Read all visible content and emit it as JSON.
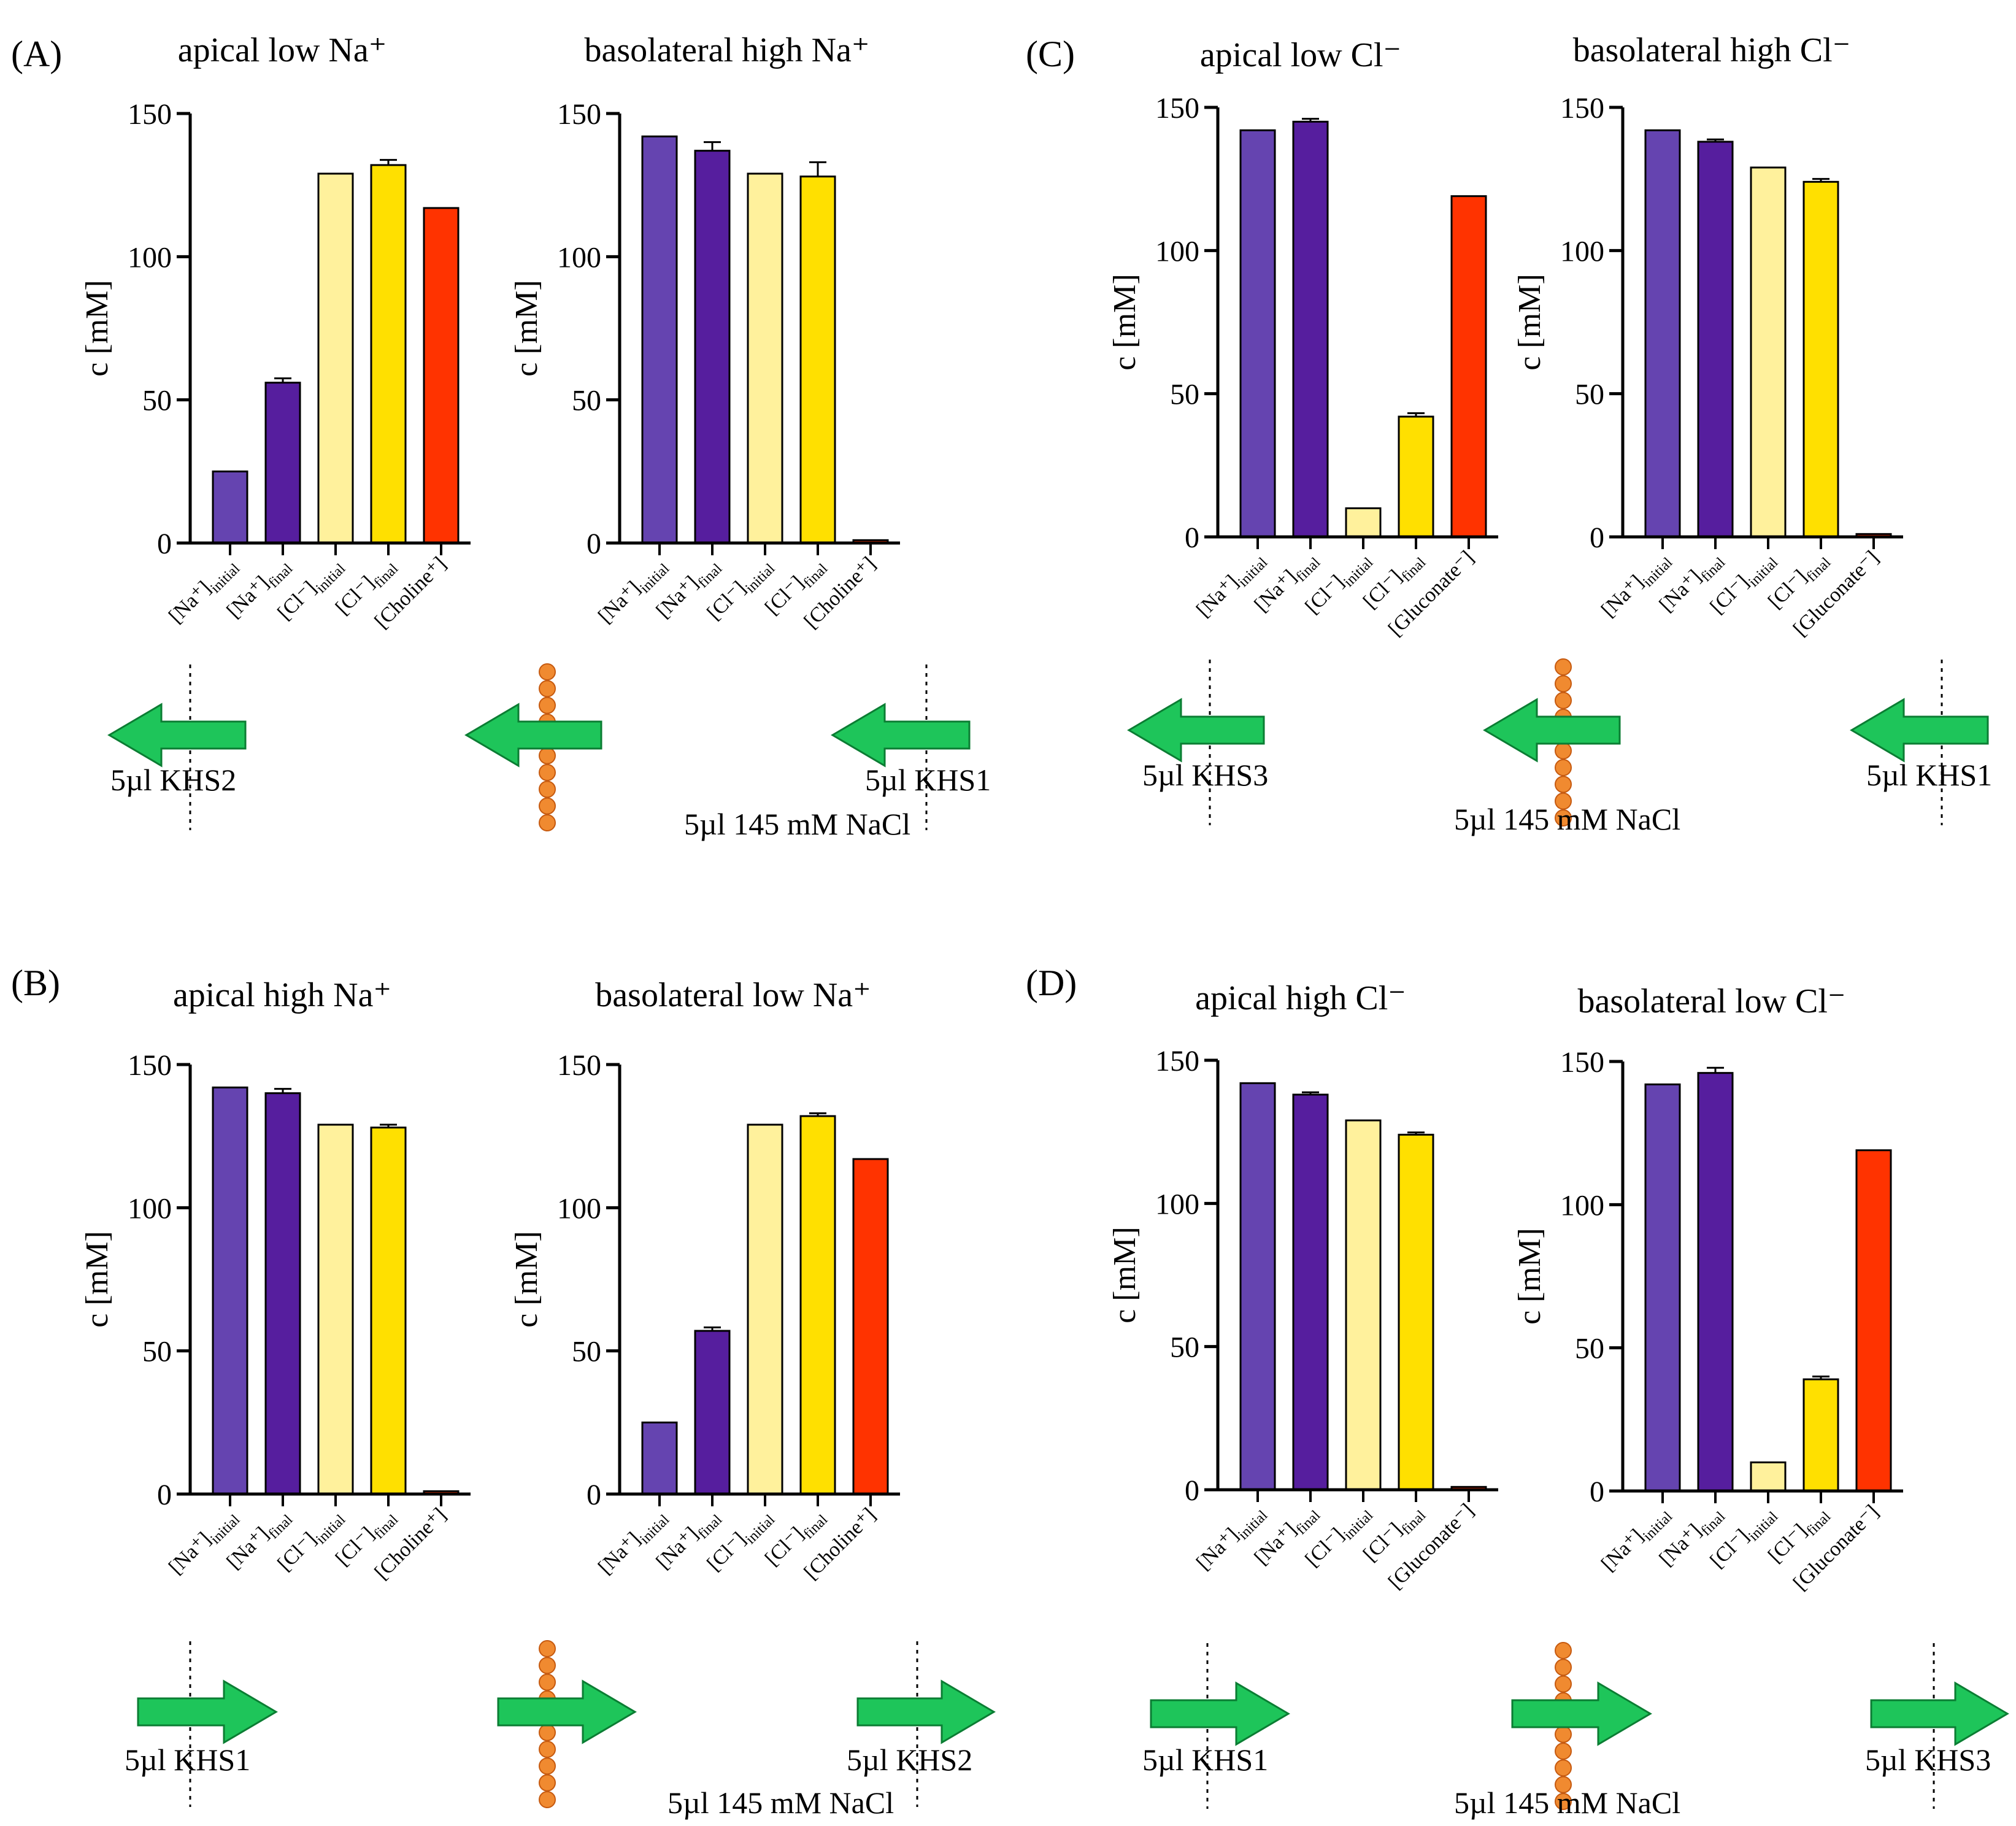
{
  "panels": [
    {
      "label": "(A)",
      "diagram": {
        "left_label": "5µl KHS2",
        "center_label": "5µl 145 mM NaCl",
        "right_label": "5µl KHS1",
        "direction": "left"
      }
    },
    {
      "label": "(C)",
      "diagram": {
        "left_label": "5µl KHS3",
        "center_label": "5µl 145 mM NaCl",
        "right_label": "5µl KHS1",
        "direction": "left"
      }
    },
    {
      "label": "(B)",
      "diagram": {
        "left_label": "5µl KHS1",
        "center_label": "5µl 145 mM NaCl",
        "right_label": "5µl KHS2",
        "direction": "right"
      }
    },
    {
      "label": "(D)",
      "diagram": {
        "left_label": "5µl KHS1",
        "center_label": "5µl 145 mM NaCl",
        "right_label": "5µl KHS3",
        "direction": "right"
      }
    }
  ],
  "colors": {
    "na_initial": "#6544b0",
    "na_final": "#561e9e",
    "cl_initial": "#fff19c",
    "cl_final": "#ffe000",
    "counter_ion": "#ff3300",
    "arrow": "#1ec55a",
    "channel": "#f08a30"
  },
  "chart_data": [
    {
      "type": "bar",
      "panel": "A",
      "title": "apical low Na⁺",
      "ylabel": "c [mM]",
      "ylim": [
        0,
        150
      ],
      "yticks": [
        0,
        50,
        100,
        150
      ],
      "categories": [
        {
          "base": "[Na⁺]",
          "sub": "initial"
        },
        {
          "base": "[Na⁺]",
          "sub": "final"
        },
        {
          "base": "[Cl⁻]",
          "sub": "initial"
        },
        {
          "base": "[Cl⁻]",
          "sub": "final"
        },
        {
          "base": "[Choline⁺]",
          "sub": ""
        }
      ],
      "values": [
        25,
        56,
        129,
        132,
        117
      ],
      "errors": [
        0,
        1.5,
        0,
        1.8,
        0
      ]
    },
    {
      "type": "bar",
      "panel": "A",
      "title": "basolateral high Na⁺",
      "ylabel": "c [mM]",
      "ylim": [
        0,
        150
      ],
      "yticks": [
        0,
        50,
        100,
        150
      ],
      "categories": [
        {
          "base": "[Na⁺]",
          "sub": "initial"
        },
        {
          "base": "[Na⁺]",
          "sub": "final"
        },
        {
          "base": "[Cl⁻]",
          "sub": "initial"
        },
        {
          "base": "[Cl⁻]",
          "sub": "final"
        },
        {
          "base": "[Choline⁺]",
          "sub": ""
        }
      ],
      "values": [
        142,
        137,
        129,
        128,
        1
      ],
      "errors": [
        0,
        3,
        0,
        5,
        0
      ]
    },
    {
      "type": "bar",
      "panel": "C",
      "title": "apical low Cl⁻",
      "ylabel": "c [mM]",
      "ylim": [
        0,
        150
      ],
      "yticks": [
        0,
        50,
        100,
        150
      ],
      "categories": [
        {
          "base": "[Na⁺]",
          "sub": "initial"
        },
        {
          "base": "[Na⁺]",
          "sub": "final"
        },
        {
          "base": "[Cl⁻]",
          "sub": "initial"
        },
        {
          "base": "[Cl⁻]",
          "sub": "final"
        },
        {
          "base": "[Gluconate⁻]",
          "sub": ""
        }
      ],
      "values": [
        142,
        145,
        10,
        42,
        119
      ],
      "errors": [
        0,
        1,
        0,
        1.2,
        0
      ]
    },
    {
      "type": "bar",
      "panel": "C",
      "title": "basolateral high Cl⁻",
      "ylabel": "c [mM]",
      "ylim": [
        0,
        150
      ],
      "yticks": [
        0,
        50,
        100,
        150
      ],
      "categories": [
        {
          "base": "[Na⁺]",
          "sub": "initial"
        },
        {
          "base": "[Na⁺]",
          "sub": "final"
        },
        {
          "base": "[Cl⁻]",
          "sub": "initial"
        },
        {
          "base": "[Cl⁻]",
          "sub": "final"
        },
        {
          "base": "[Gluconate⁻]",
          "sub": ""
        }
      ],
      "values": [
        142,
        138,
        129,
        124,
        1
      ],
      "errors": [
        0,
        0.8,
        0,
        1,
        0
      ]
    },
    {
      "type": "bar",
      "panel": "B",
      "title": "apical high Na⁺",
      "ylabel": "c [mM]",
      "ylim": [
        0,
        150
      ],
      "yticks": [
        0,
        50,
        100,
        150
      ],
      "categories": [
        {
          "base": "[Na⁺]",
          "sub": "initial"
        },
        {
          "base": "[Na⁺]",
          "sub": "final"
        },
        {
          "base": "[Cl⁻]",
          "sub": "initial"
        },
        {
          "base": "[Cl⁻]",
          "sub": "final"
        },
        {
          "base": "[Choline⁺]",
          "sub": ""
        }
      ],
      "values": [
        142,
        140,
        129,
        128,
        1
      ],
      "errors": [
        0,
        1.5,
        0,
        1,
        0
      ]
    },
    {
      "type": "bar",
      "panel": "B",
      "title": "basolateral low Na⁺",
      "ylabel": "c [mM]",
      "ylim": [
        0,
        150
      ],
      "yticks": [
        0,
        50,
        100,
        150
      ],
      "categories": [
        {
          "base": "[Na⁺]",
          "sub": "initial"
        },
        {
          "base": "[Na⁺]",
          "sub": "final"
        },
        {
          "base": "[Cl⁻]",
          "sub": "initial"
        },
        {
          "base": "[Cl⁻]",
          "sub": "final"
        },
        {
          "base": "[Choline⁺]",
          "sub": ""
        }
      ],
      "values": [
        25,
        57,
        129,
        132,
        117
      ],
      "errors": [
        0,
        1.2,
        0,
        1,
        0
      ]
    },
    {
      "type": "bar",
      "panel": "D",
      "title": "apical high Cl⁻",
      "ylabel": "c [mM]",
      "ylim": [
        0,
        150
      ],
      "yticks": [
        0,
        50,
        100,
        150
      ],
      "categories": [
        {
          "base": "[Na⁺]",
          "sub": "initial"
        },
        {
          "base": "[Na⁺]",
          "sub": "final"
        },
        {
          "base": "[Cl⁻]",
          "sub": "initial"
        },
        {
          "base": "[Cl⁻]",
          "sub": "final"
        },
        {
          "base": "[Gluconate⁻]",
          "sub": ""
        }
      ],
      "values": [
        142,
        138,
        129,
        124,
        1
      ],
      "errors": [
        0,
        0.8,
        0,
        0.8,
        0
      ]
    },
    {
      "type": "bar",
      "panel": "D",
      "title": "basolateral low Cl⁻",
      "ylabel": "c [mM]",
      "ylim": [
        0,
        150
      ],
      "yticks": [
        0,
        50,
        100,
        150
      ],
      "categories": [
        {
          "base": "[Na⁺]",
          "sub": "initial"
        },
        {
          "base": "[Na⁺]",
          "sub": "final"
        },
        {
          "base": "[Cl⁻]",
          "sub": "initial"
        },
        {
          "base": "[Cl⁻]",
          "sub": "final"
        },
        {
          "base": "[Gluconate⁻]",
          "sub": ""
        }
      ],
      "values": [
        142,
        146,
        10,
        39,
        119
      ],
      "errors": [
        0,
        1.8,
        0,
        1,
        0
      ]
    }
  ]
}
